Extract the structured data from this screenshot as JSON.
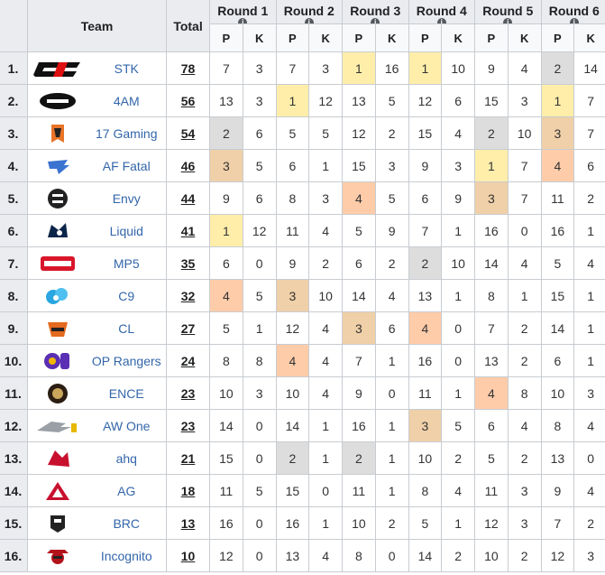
{
  "header": {
    "team": "Team",
    "total": "Total",
    "rounds": [
      "Round 1",
      "Round 2",
      "Round 3",
      "Round 4",
      "Round 5",
      "Round 6"
    ],
    "p": "P",
    "k": "K",
    "info": "i"
  },
  "colors": {
    "gold": "#ffeeaa",
    "silver": "#dddddd",
    "bronze": "#f0d0a8",
    "fourth": "#ffccaa",
    "link": "#3366aa"
  },
  "rows": [
    {
      "rank": "1.",
      "team": "STK",
      "logo": "stk-logo",
      "total": "78",
      "rounds": [
        [
          7,
          3
        ],
        [
          7,
          3
        ],
        [
          1,
          16
        ],
        [
          1,
          10
        ],
        [
          9,
          4
        ],
        [
          2,
          14
        ]
      ]
    },
    {
      "rank": "2.",
      "team": "4AM",
      "logo": "4am-logo",
      "total": "56",
      "rounds": [
        [
          13,
          3
        ],
        [
          1,
          12
        ],
        [
          13,
          5
        ],
        [
          12,
          6
        ],
        [
          15,
          3
        ],
        [
          1,
          7
        ]
      ]
    },
    {
      "rank": "3.",
      "team": "17 Gaming",
      "logo": "17gaming-logo",
      "total": "54",
      "rounds": [
        [
          2,
          6
        ],
        [
          5,
          5
        ],
        [
          12,
          2
        ],
        [
          15,
          4
        ],
        [
          2,
          10
        ],
        [
          3,
          7
        ]
      ]
    },
    {
      "rank": "4.",
      "team": "AF Fatal",
      "logo": "affatal-logo",
      "total": "46",
      "rounds": [
        [
          3,
          5
        ],
        [
          6,
          1
        ],
        [
          15,
          3
        ],
        [
          9,
          3
        ],
        [
          1,
          7
        ],
        [
          4,
          6
        ]
      ]
    },
    {
      "rank": "5.",
      "team": "Envy",
      "logo": "envy-logo",
      "total": "44",
      "rounds": [
        [
          9,
          6
        ],
        [
          8,
          3
        ],
        [
          4,
          5
        ],
        [
          6,
          9
        ],
        [
          3,
          7
        ],
        [
          11,
          2
        ]
      ]
    },
    {
      "rank": "6.",
      "team": "Liquid",
      "logo": "liquid-logo",
      "total": "41",
      "rounds": [
        [
          1,
          12
        ],
        [
          11,
          4
        ],
        [
          5,
          9
        ],
        [
          7,
          1
        ],
        [
          16,
          0
        ],
        [
          16,
          1
        ]
      ]
    },
    {
      "rank": "7.",
      "team": "MP5",
      "logo": "mp5-logo",
      "total": "35",
      "rounds": [
        [
          6,
          0
        ],
        [
          9,
          2
        ],
        [
          6,
          2
        ],
        [
          2,
          10
        ],
        [
          14,
          4
        ],
        [
          5,
          4
        ]
      ]
    },
    {
      "rank": "8.",
      "team": "C9",
      "logo": "c9-logo",
      "total": "32",
      "rounds": [
        [
          4,
          5
        ],
        [
          3,
          10
        ],
        [
          14,
          4
        ],
        [
          13,
          1
        ],
        [
          8,
          1
        ],
        [
          15,
          1
        ]
      ]
    },
    {
      "rank": "9.",
      "team": "CL",
      "logo": "cl-logo",
      "total": "27",
      "rounds": [
        [
          5,
          1
        ],
        [
          12,
          4
        ],
        [
          3,
          6
        ],
        [
          4,
          0
        ],
        [
          7,
          2
        ],
        [
          14,
          1
        ]
      ]
    },
    {
      "rank": "10.",
      "team": "OP Rangers",
      "logo": "oprangers-logo",
      "total": "24",
      "rounds": [
        [
          8,
          8
        ],
        [
          4,
          4
        ],
        [
          7,
          1
        ],
        [
          16,
          0
        ],
        [
          13,
          2
        ],
        [
          6,
          1
        ]
      ]
    },
    {
      "rank": "11.",
      "team": "ENCE",
      "logo": "ence-logo",
      "total": "23",
      "rounds": [
        [
          10,
          3
        ],
        [
          10,
          4
        ],
        [
          9,
          0
        ],
        [
          11,
          1
        ],
        [
          4,
          8
        ],
        [
          10,
          3
        ]
      ]
    },
    {
      "rank": "12.",
      "team": "AW One",
      "logo": "awone-logo",
      "total": "23",
      "rounds": [
        [
          14,
          0
        ],
        [
          14,
          1
        ],
        [
          16,
          1
        ],
        [
          3,
          5
        ],
        [
          6,
          4
        ],
        [
          8,
          4
        ]
      ]
    },
    {
      "rank": "13.",
      "team": "ahq",
      "logo": "ahq-logo",
      "total": "21",
      "rounds": [
        [
          15,
          0
        ],
        [
          2,
          1
        ],
        [
          2,
          1
        ],
        [
          10,
          2
        ],
        [
          5,
          2
        ],
        [
          13,
          0
        ]
      ]
    },
    {
      "rank": "14.",
      "team": "AG",
      "logo": "ag-logo",
      "total": "18",
      "rounds": [
        [
          11,
          5
        ],
        [
          15,
          0
        ],
        [
          11,
          1
        ],
        [
          8,
          4
        ],
        [
          11,
          3
        ],
        [
          9,
          4
        ]
      ]
    },
    {
      "rank": "15.",
      "team": "BRC",
      "logo": "brc-logo",
      "total": "13",
      "rounds": [
        [
          16,
          0
        ],
        [
          16,
          1
        ],
        [
          10,
          2
        ],
        [
          5,
          1
        ],
        [
          12,
          3
        ],
        [
          7,
          2
        ]
      ]
    },
    {
      "rank": "16.",
      "team": "Incognito",
      "logo": "incognito-logo",
      "total": "10",
      "rounds": [
        [
          12,
          0
        ],
        [
          13,
          4
        ],
        [
          8,
          0
        ],
        [
          14,
          2
        ],
        [
          10,
          2
        ],
        [
          12,
          3
        ]
      ]
    }
  ]
}
